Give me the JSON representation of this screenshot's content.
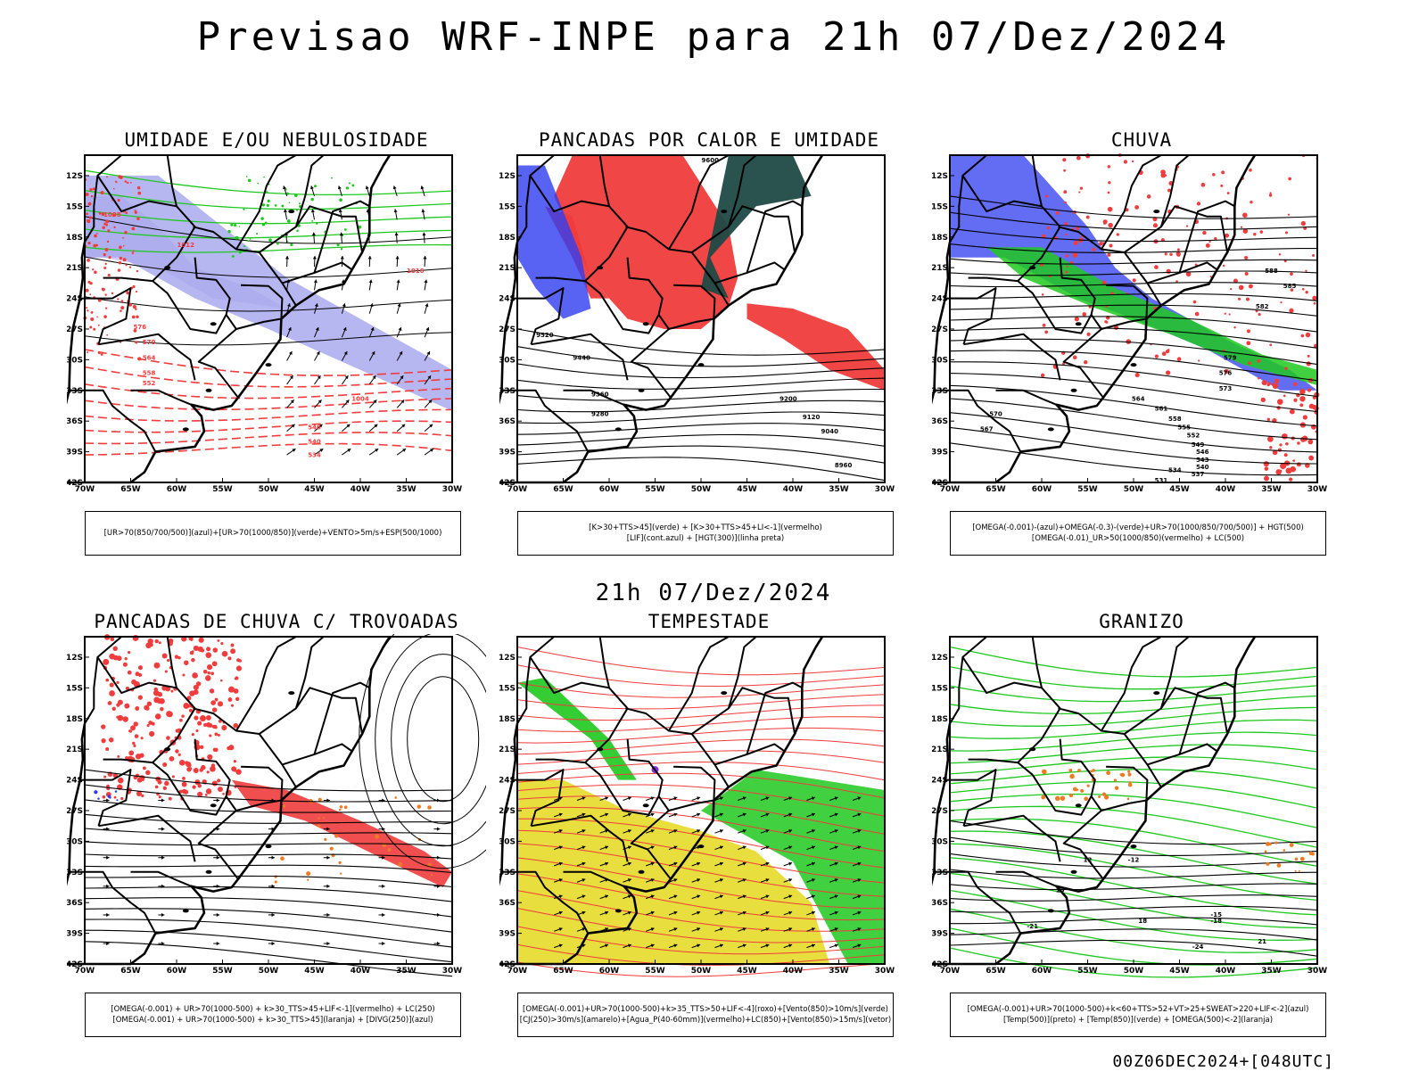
{
  "title": "Previsao WRF-INPE  para 21h 07/Dez/2024",
  "mid_date": "21h 07/Dez/2024",
  "footer": "00Z06DEC2024+[048UTC]",
  "lat_labels": [
    "12S",
    "15S",
    "18S",
    "21S",
    "24S",
    "27S",
    "30S",
    "33S",
    "36S",
    "39S",
    "42S"
  ],
  "lon_labels": [
    "70W",
    "65W",
    "60W",
    "55W",
    "50W",
    "45W",
    "40W",
    "35W",
    "30W"
  ],
  "colors": {
    "red": "#f03c3c",
    "blue": "#2f3cf0",
    "green": "#1ec81e",
    "lavender": "#a9a9ee",
    "darkteal": "#1f4a46",
    "yellow": "#e6dc2a",
    "orange": "#ee7b22",
    "purple": "#8a2be2"
  },
  "panels": [
    {
      "title": "UMIDADE E/OU NEBULOSIDADE",
      "legend": [
        "[UR>70(850/700/500)](azul)+[UR>70(1000/850)](verde)+VENTO>5m/s+ESP(500/1000)"
      ],
      "contour_labels": [
        "1008",
        "1012",
        "1016",
        "1004",
        "576",
        "570",
        "564",
        "558",
        "552",
        "546",
        "540",
        "534"
      ]
    },
    {
      "title": "PANCADAS POR CALOR E UMIDADE",
      "legend": [
        "[K>30+TTS>45](verde) + [K>30+TTS>45+LI<-1](vermelho)",
        "[LIF](cont.azul) + [HGT(300)](linha preta)"
      ],
      "contour_labels": [
        "9600",
        "9520",
        "9440",
        "9360",
        "9280",
        "9200",
        "9120",
        "9040",
        "8960"
      ]
    },
    {
      "title": "CHUVA",
      "legend": [
        "[OMEGA(-0.001)-(azul)+OMEGA(-0.3)-(verde)+UR>70(1000/850/700/500)] + HGT(500)",
        "[OMEGA(-0.01)_UR>50(1000/850)(vermelho) + LC(500)"
      ],
      "contour_labels": [
        "588",
        "585",
        "582",
        "579",
        "576",
        "573",
        "570",
        "567",
        "564",
        "561",
        "558",
        "555",
        "552",
        "549",
        "546",
        "543",
        "540",
        "537",
        "534",
        "531"
      ]
    },
    {
      "title": "PANCADAS DE CHUVA C/ TROVOADAS",
      "legend": [
        "[OMEGA(-0.001) + UR>70(1000-500) + k>30_TTS>45+LIF<-1](vermelho) + LC(250)",
        "[OMEGA(-0.001) + UR>70(1000-500) + k>30_TTS>45](laranja) + [DIVG(250)](azul)"
      ],
      "contour_labels": []
    },
    {
      "title": "TEMPESTADE",
      "legend": [
        "[OMEGA(-0.001)+UR>70(1000-500)+k>35_TTS>50+LIF<-4](roxo)+[Vento(850)>10m/s](verde)",
        "[CJ(250)>30m/s](amarelo)+[Agua_P(40-60mm)](vermelho)+LC(850)+[Vento(850)>15m/s](vetor)"
      ],
      "contour_labels": []
    },
    {
      "title": "GRANIZO",
      "legend": [
        "[OMEGA(-0.001)+UR>70(1000-500)+k<60+TTS>52+VT>25+SWEAT>220+LIF<-2](azul)",
        "[Temp(500)](preto) + [Temp(850)](verde) + [OMEGA(500)<-2](laranja)"
      ],
      "contour_labels": [
        "-12",
        "-15",
        "-18",
        "-21",
        "-24",
        "12",
        "15",
        "18",
        "21"
      ]
    }
  ]
}
